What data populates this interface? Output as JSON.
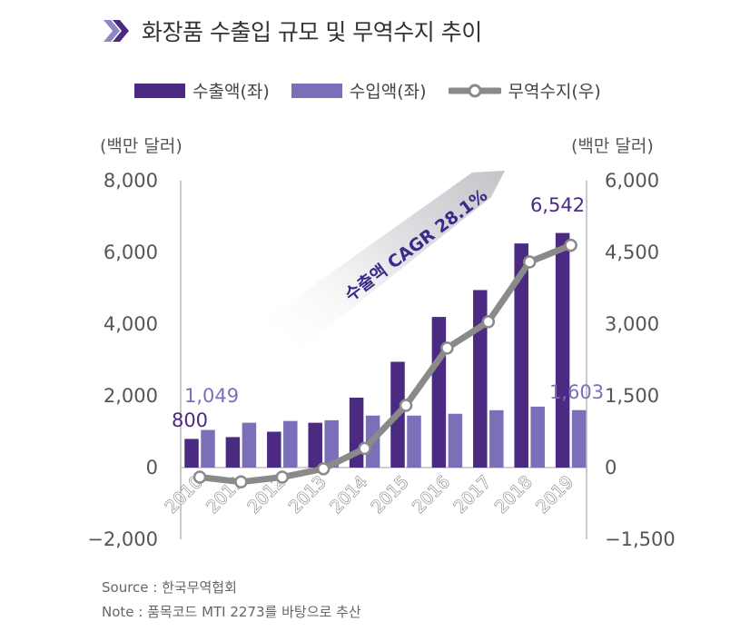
{
  "title": "화장품 수출입 규모 및 무역수지 추이",
  "icon": "double-chevron-icon",
  "legend": {
    "export": "수출액(좌)",
    "import": "수입액(좌)",
    "balance": "무역수지(우)"
  },
  "units": {
    "left": "(백만 달러)",
    "right": "(백만 달러)"
  },
  "annotation": "수출액 CAGR 28.1%",
  "source": "Source : 한국무역협회",
  "note": "Note : 품목코드 MTI 2273를 바탕으로 추산",
  "colors": {
    "export": "#4b2a82",
    "import": "#7b70b8",
    "balance_line": "#8a8a8a",
    "title_icon": "#6a5aa8",
    "axis": "#b8b8b8",
    "tick_text": "#555555"
  },
  "chart_data": {
    "type": "bar",
    "categories": [
      "2010",
      "2011",
      "2012",
      "2013",
      "2014",
      "2015",
      "2016",
      "2017",
      "2018",
      "2019"
    ],
    "series": [
      {
        "name": "수출액(좌)",
        "type": "bar",
        "axis": "left",
        "values": [
          800,
          850,
          1000,
          1250,
          1950,
          2950,
          4200,
          4950,
          6250,
          6542
        ]
      },
      {
        "name": "수입액(좌)",
        "type": "bar",
        "axis": "left",
        "values": [
          1049,
          1250,
          1300,
          1320,
          1450,
          1450,
          1500,
          1600,
          1700,
          1603
        ]
      },
      {
        "name": "무역수지(우)",
        "type": "line",
        "axis": "right",
        "values": [
          -200,
          -300,
          -200,
          -25,
          400,
          1300,
          2500,
          3050,
          4300,
          4650
        ]
      }
    ],
    "data_labels": [
      {
        "series": "수출액(좌)",
        "category": "2010",
        "text": "800"
      },
      {
        "series": "수입액(좌)",
        "category": "2010",
        "text": "1,049"
      },
      {
        "series": "수출액(좌)",
        "category": "2019",
        "text": "6,542"
      },
      {
        "series": "수입액(좌)",
        "category": "2019",
        "text": "1,603"
      }
    ],
    "y_left": {
      "min": -2000,
      "max": 8000,
      "ticks": [
        -2000,
        0,
        2000,
        4000,
        6000,
        8000
      ],
      "tick_labels": [
        "−2,000",
        "0",
        "2,000",
        "4,000",
        "6,000",
        "8,000"
      ]
    },
    "y_right": {
      "min": -1500,
      "max": 6000,
      "ticks": [
        -1500,
        0,
        1500,
        3000,
        4500,
        6000
      ],
      "tick_labels": [
        "−1,500",
        "0",
        "1,500",
        "3,000",
        "4,500",
        "6,000"
      ]
    },
    "grid": false,
    "legend_position": "top"
  }
}
